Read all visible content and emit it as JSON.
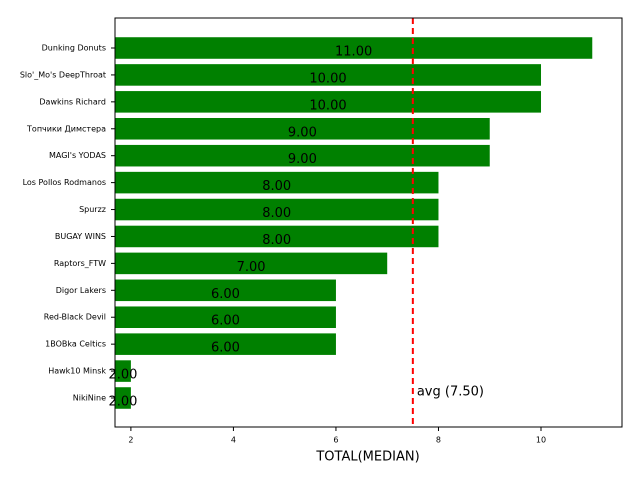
{
  "chart_data": {
    "type": "barh",
    "xlabel": "TOTAL(MEDIAN)",
    "categories": [
      "Dunking Donuts",
      "Slo'_Mo's DeepThroat",
      "Dawkins Richard",
      "Топчики Димстера",
      "MAGI's YODAS",
      "Los Pollos Rodmanos",
      "Spurzz",
      "BUGAY WINS",
      "Raptors_FTW",
      "Digor Lakers",
      "Red-Black Devil",
      "1BOBka Celtics",
      "Hawk10 Minsk",
      "NikiNine"
    ],
    "values": [
      11,
      10,
      10,
      9,
      9,
      8,
      8,
      8,
      7,
      6,
      6,
      6,
      2,
      2
    ],
    "value_labels": [
      "11.00",
      "10.00",
      "10.00",
      "9.00",
      "9.00",
      "8.00",
      "8.00",
      "8.00",
      "7.00",
      "6.00",
      "6.00",
      "6.00",
      "2.00",
      "2.00"
    ],
    "color": "#008000",
    "xlim": [
      1.69,
      11.58
    ],
    "xticks": [
      2,
      4,
      6,
      8,
      10
    ],
    "reference_line": {
      "value": 7.5,
      "label": "avg (7.50)",
      "color": "#ff0000"
    }
  }
}
